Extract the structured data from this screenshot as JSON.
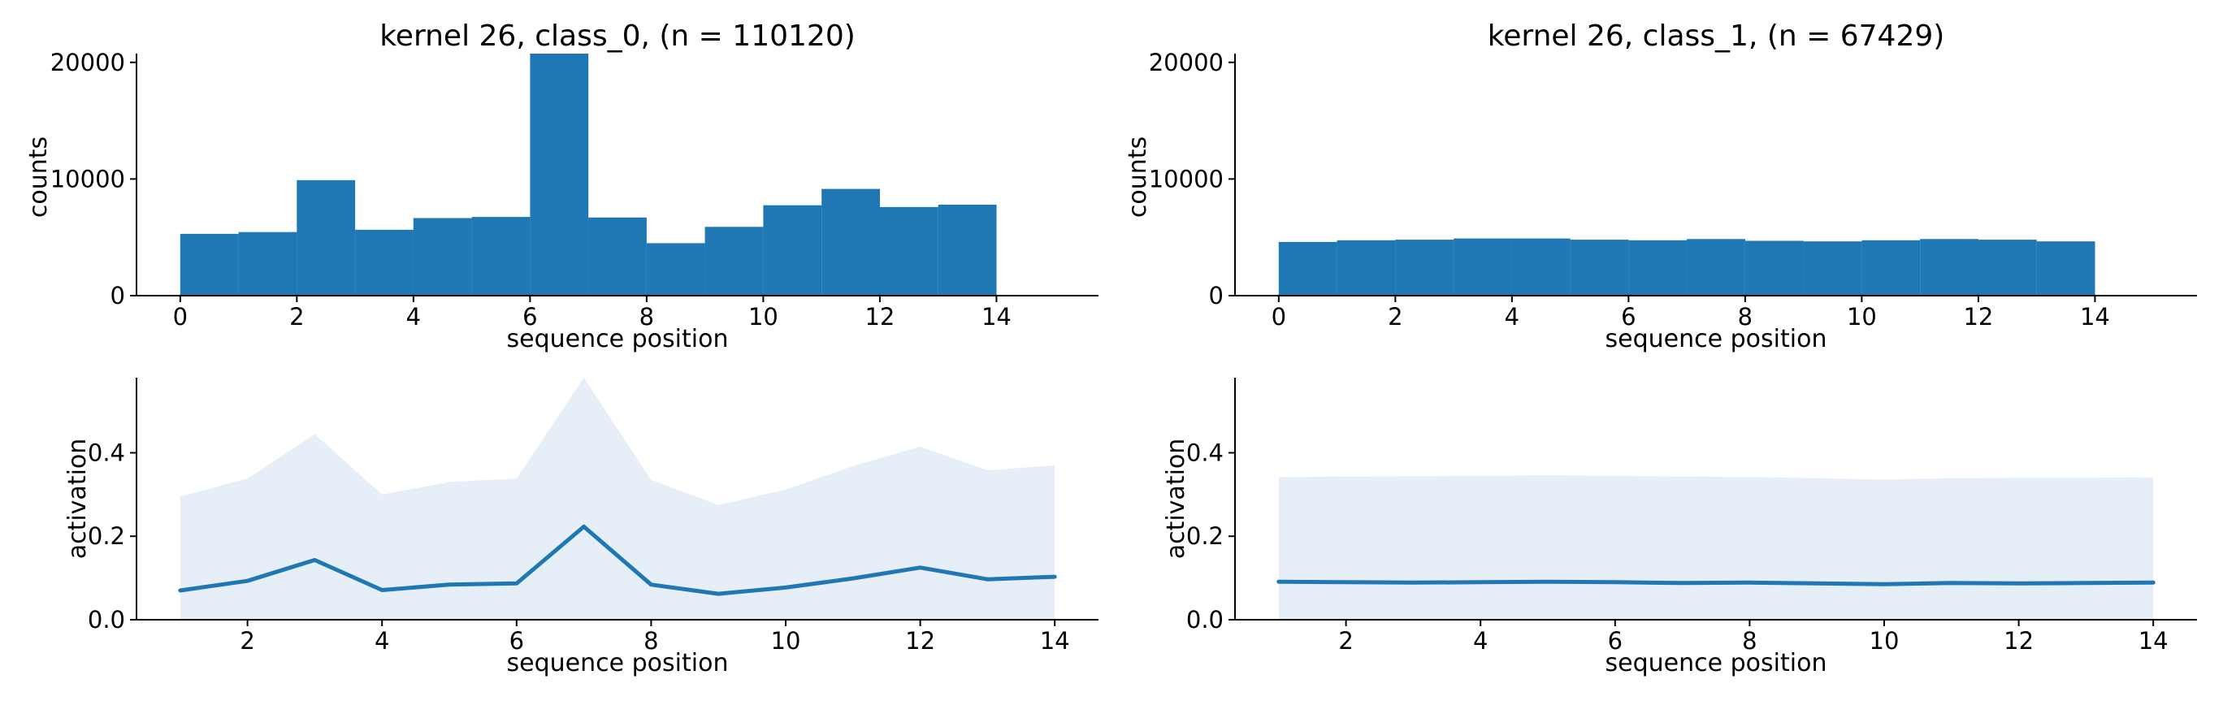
{
  "colors": {
    "bar": "#1f77b4",
    "line": "#1f77b4",
    "band": "#e6eef7"
  },
  "chart_data": [
    {
      "type": "bar",
      "title": "kernel 26, class_0, (n = 110120)",
      "xlabel": "sequence position",
      "ylabel": "counts",
      "xlim": [
        -0.75,
        15.75
      ],
      "ylim": [
        0,
        20750
      ],
      "xticks": [
        0,
        2,
        4,
        6,
        8,
        10,
        12,
        14
      ],
      "xtick_labels": [
        "0",
        "2",
        "4",
        "6",
        "8",
        "10",
        "12",
        "14"
      ],
      "yticks": [
        0,
        10000,
        20000
      ],
      "ytick_labels": [
        "0",
        "10000",
        "20000"
      ],
      "bin_edges": [
        0,
        1,
        2,
        3,
        4,
        5,
        6,
        7,
        8,
        9,
        10,
        11,
        12,
        13,
        14
      ],
      "values": [
        5300,
        5450,
        9900,
        5650,
        6650,
        6750,
        20900,
        6700,
        4500,
        5900,
        7750,
        9150,
        7600,
        7800
      ]
    },
    {
      "type": "bar",
      "title": "kernel 26, class_1, (n = 67429)",
      "xlabel": "sequence position",
      "ylabel": "counts",
      "xlim": [
        -0.75,
        15.75
      ],
      "ylim": [
        0,
        20750
      ],
      "xticks": [
        0,
        2,
        4,
        6,
        8,
        10,
        12,
        14
      ],
      "xtick_labels": [
        "0",
        "2",
        "4",
        "6",
        "8",
        "10",
        "12",
        "14"
      ],
      "yticks": [
        0,
        10000,
        20000
      ],
      "ytick_labels": [
        "0",
        "10000",
        "20000"
      ],
      "bin_edges": [
        0,
        1,
        2,
        3,
        4,
        5,
        6,
        7,
        8,
        9,
        10,
        11,
        12,
        13,
        14
      ],
      "values": [
        4600,
        4750,
        4800,
        4900,
        4900,
        4800,
        4750,
        4850,
        4700,
        4650,
        4750,
        4850,
        4800,
        4650
      ]
    },
    {
      "type": "line",
      "title": "",
      "xlabel": "sequence position",
      "ylabel": "activation",
      "xlim": [
        0.35,
        14.65
      ],
      "ylim": [
        0,
        0.58
      ],
      "xticks": [
        2,
        4,
        6,
        8,
        10,
        12,
        14
      ],
      "xtick_labels": [
        "2",
        "4",
        "6",
        "8",
        "10",
        "12",
        "14"
      ],
      "yticks": [
        0,
        0.2,
        0.4
      ],
      "ytick_labels": [
        "0.0",
        "0.2",
        "0.4"
      ],
      "x": [
        1,
        2,
        3,
        4,
        5,
        6,
        7,
        8,
        9,
        10,
        11,
        12,
        13,
        14
      ],
      "mean": [
        0.07,
        0.093,
        0.143,
        0.071,
        0.084,
        0.087,
        0.223,
        0.084,
        0.062,
        0.077,
        0.099,
        0.125,
        0.097,
        0.103
      ],
      "upper": [
        0.295,
        0.338,
        0.445,
        0.3,
        0.33,
        0.338,
        0.58,
        0.335,
        0.275,
        0.312,
        0.368,
        0.415,
        0.358,
        0.37
      ]
    },
    {
      "type": "line",
      "title": "",
      "xlabel": "sequence position",
      "ylabel": "activation",
      "xlim": [
        0.35,
        14.65
      ],
      "ylim": [
        0,
        0.58
      ],
      "xticks": [
        2,
        4,
        6,
        8,
        10,
        12,
        14
      ],
      "xtick_labels": [
        "2",
        "4",
        "6",
        "8",
        "10",
        "12",
        "14"
      ],
      "yticks": [
        0,
        0.2,
        0.4
      ],
      "ytick_labels": [
        "0.0",
        "0.2",
        "0.4"
      ],
      "x": [
        1,
        2,
        3,
        4,
        5,
        6,
        7,
        8,
        9,
        10,
        11,
        12,
        13,
        14
      ],
      "mean": [
        0.091,
        0.09,
        0.089,
        0.09,
        0.091,
        0.09,
        0.088,
        0.089,
        0.087,
        0.085,
        0.088,
        0.087,
        0.088,
        0.089
      ],
      "upper": [
        0.342,
        0.343,
        0.344,
        0.345,
        0.346,
        0.345,
        0.343,
        0.342,
        0.339,
        0.336,
        0.339,
        0.34,
        0.34,
        0.341
      ]
    }
  ]
}
